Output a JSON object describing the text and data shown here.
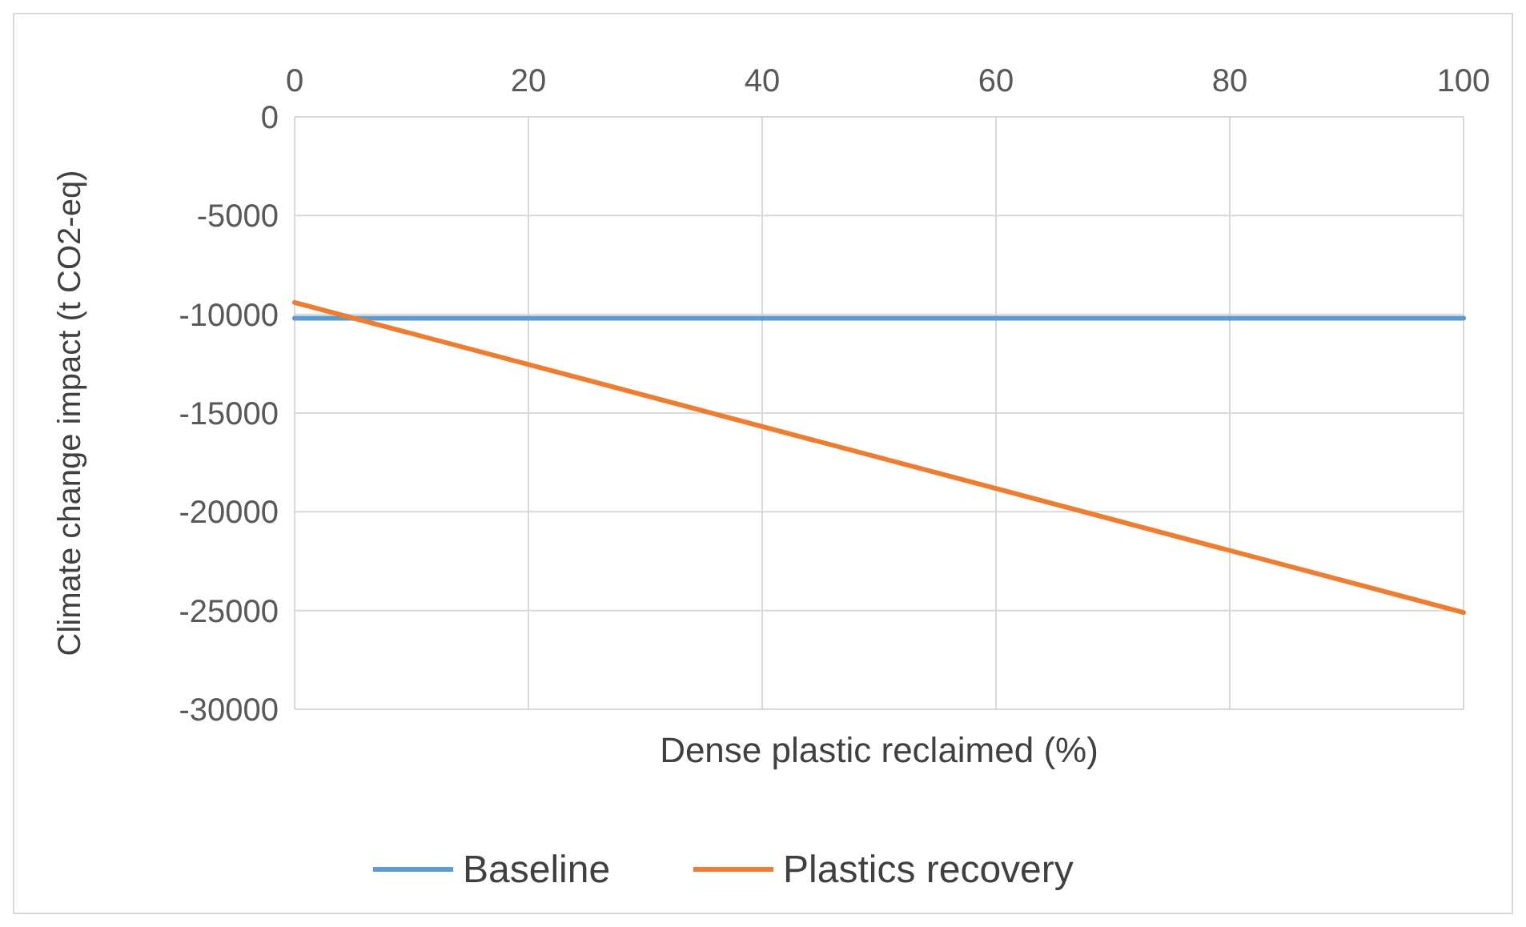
{
  "chart_data": {
    "type": "line",
    "xlabel": "Dense plastic reclaimed (%)",
    "ylabel": "Climate change impact (t CO2-eq)",
    "xlim": [
      0,
      100
    ],
    "xticks": [
      0,
      20,
      40,
      60,
      80,
      100
    ],
    "ylim": [
      -30000,
      0
    ],
    "yticks": [
      0,
      -5000,
      -10000,
      -15000,
      -20000,
      -25000,
      -30000
    ],
    "grid": true,
    "legend": "bottom",
    "marker": "none",
    "line_style": "solid",
    "x": [
      0,
      100
    ],
    "series": [
      {
        "name": "Baseline",
        "color": "#5b9bd5",
        "values": [
          -10200,
          -10200
        ]
      },
      {
        "name": "Plastics recovery",
        "color": "#ed7d31",
        "values": [
          -9400,
          -25100
        ]
      }
    ]
  }
}
